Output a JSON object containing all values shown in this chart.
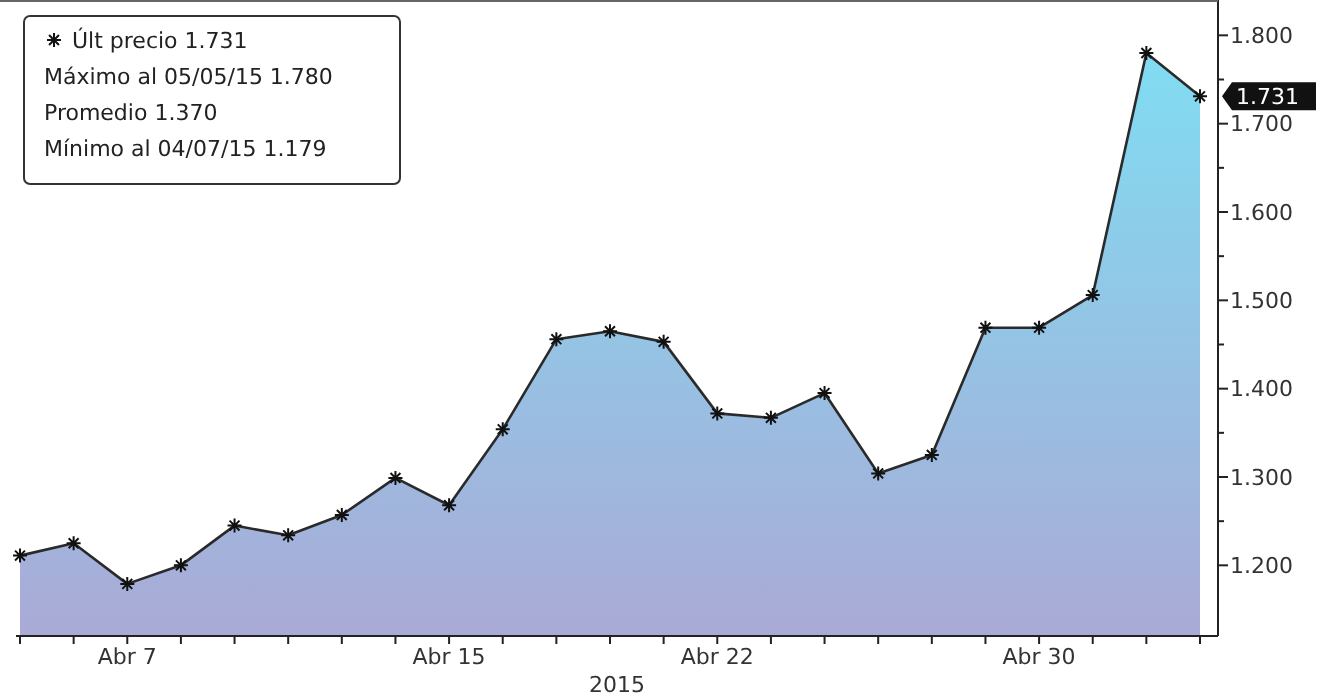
{
  "chart_data": {
    "type": "area",
    "xlabel": "2015",
    "categories": [
      null,
      null,
      "Abr 7",
      null,
      null,
      null,
      null,
      null,
      "Abr 15",
      null,
      null,
      null,
      null,
      "Abr 22",
      null,
      null,
      null,
      null,
      null,
      "Abr 30",
      null,
      null,
      null
    ],
    "series": [
      {
        "name": "Últ precio",
        "color": "#80dcf2",
        "values": [
          1.211,
          1.225,
          1.179,
          1.2,
          1.245,
          1.234,
          1.257,
          1.299,
          1.268,
          1.354,
          1.456,
          1.465,
          1.453,
          1.372,
          1.367,
          1.395,
          1.304,
          1.325,
          1.469,
          1.469,
          1.506,
          1.78,
          1.731
        ]
      }
    ],
    "ylim": [
      1.12,
      1.84
    ],
    "yticks": [
      {
        "value": 1.2,
        "label": "1.200"
      },
      {
        "value": 1.25,
        "label": null
      },
      {
        "value": 1.3,
        "label": "1.300"
      },
      {
        "value": 1.35,
        "label": null
      },
      {
        "value": 1.4,
        "label": "1.400"
      },
      {
        "value": 1.45,
        "label": null
      },
      {
        "value": 1.5,
        "label": "1.500"
      },
      {
        "value": 1.55,
        "label": null
      },
      {
        "value": 1.6,
        "label": "1.600"
      },
      {
        "value": 1.65,
        "label": null
      },
      {
        "value": 1.7,
        "label": "1.700"
      },
      {
        "value": 1.75,
        "label": null
      },
      {
        "value": 1.8,
        "label": "1.800"
      }
    ],
    "marker": "cross",
    "legend": "top left",
    "grid": false,
    "annotations": [
      "1.731",
      "Máximo al 05/05/15  1.780",
      "Promedio  1.370",
      "Mínimo al 04/07/15  1.179",
      "1.731"
    ]
  }
}
